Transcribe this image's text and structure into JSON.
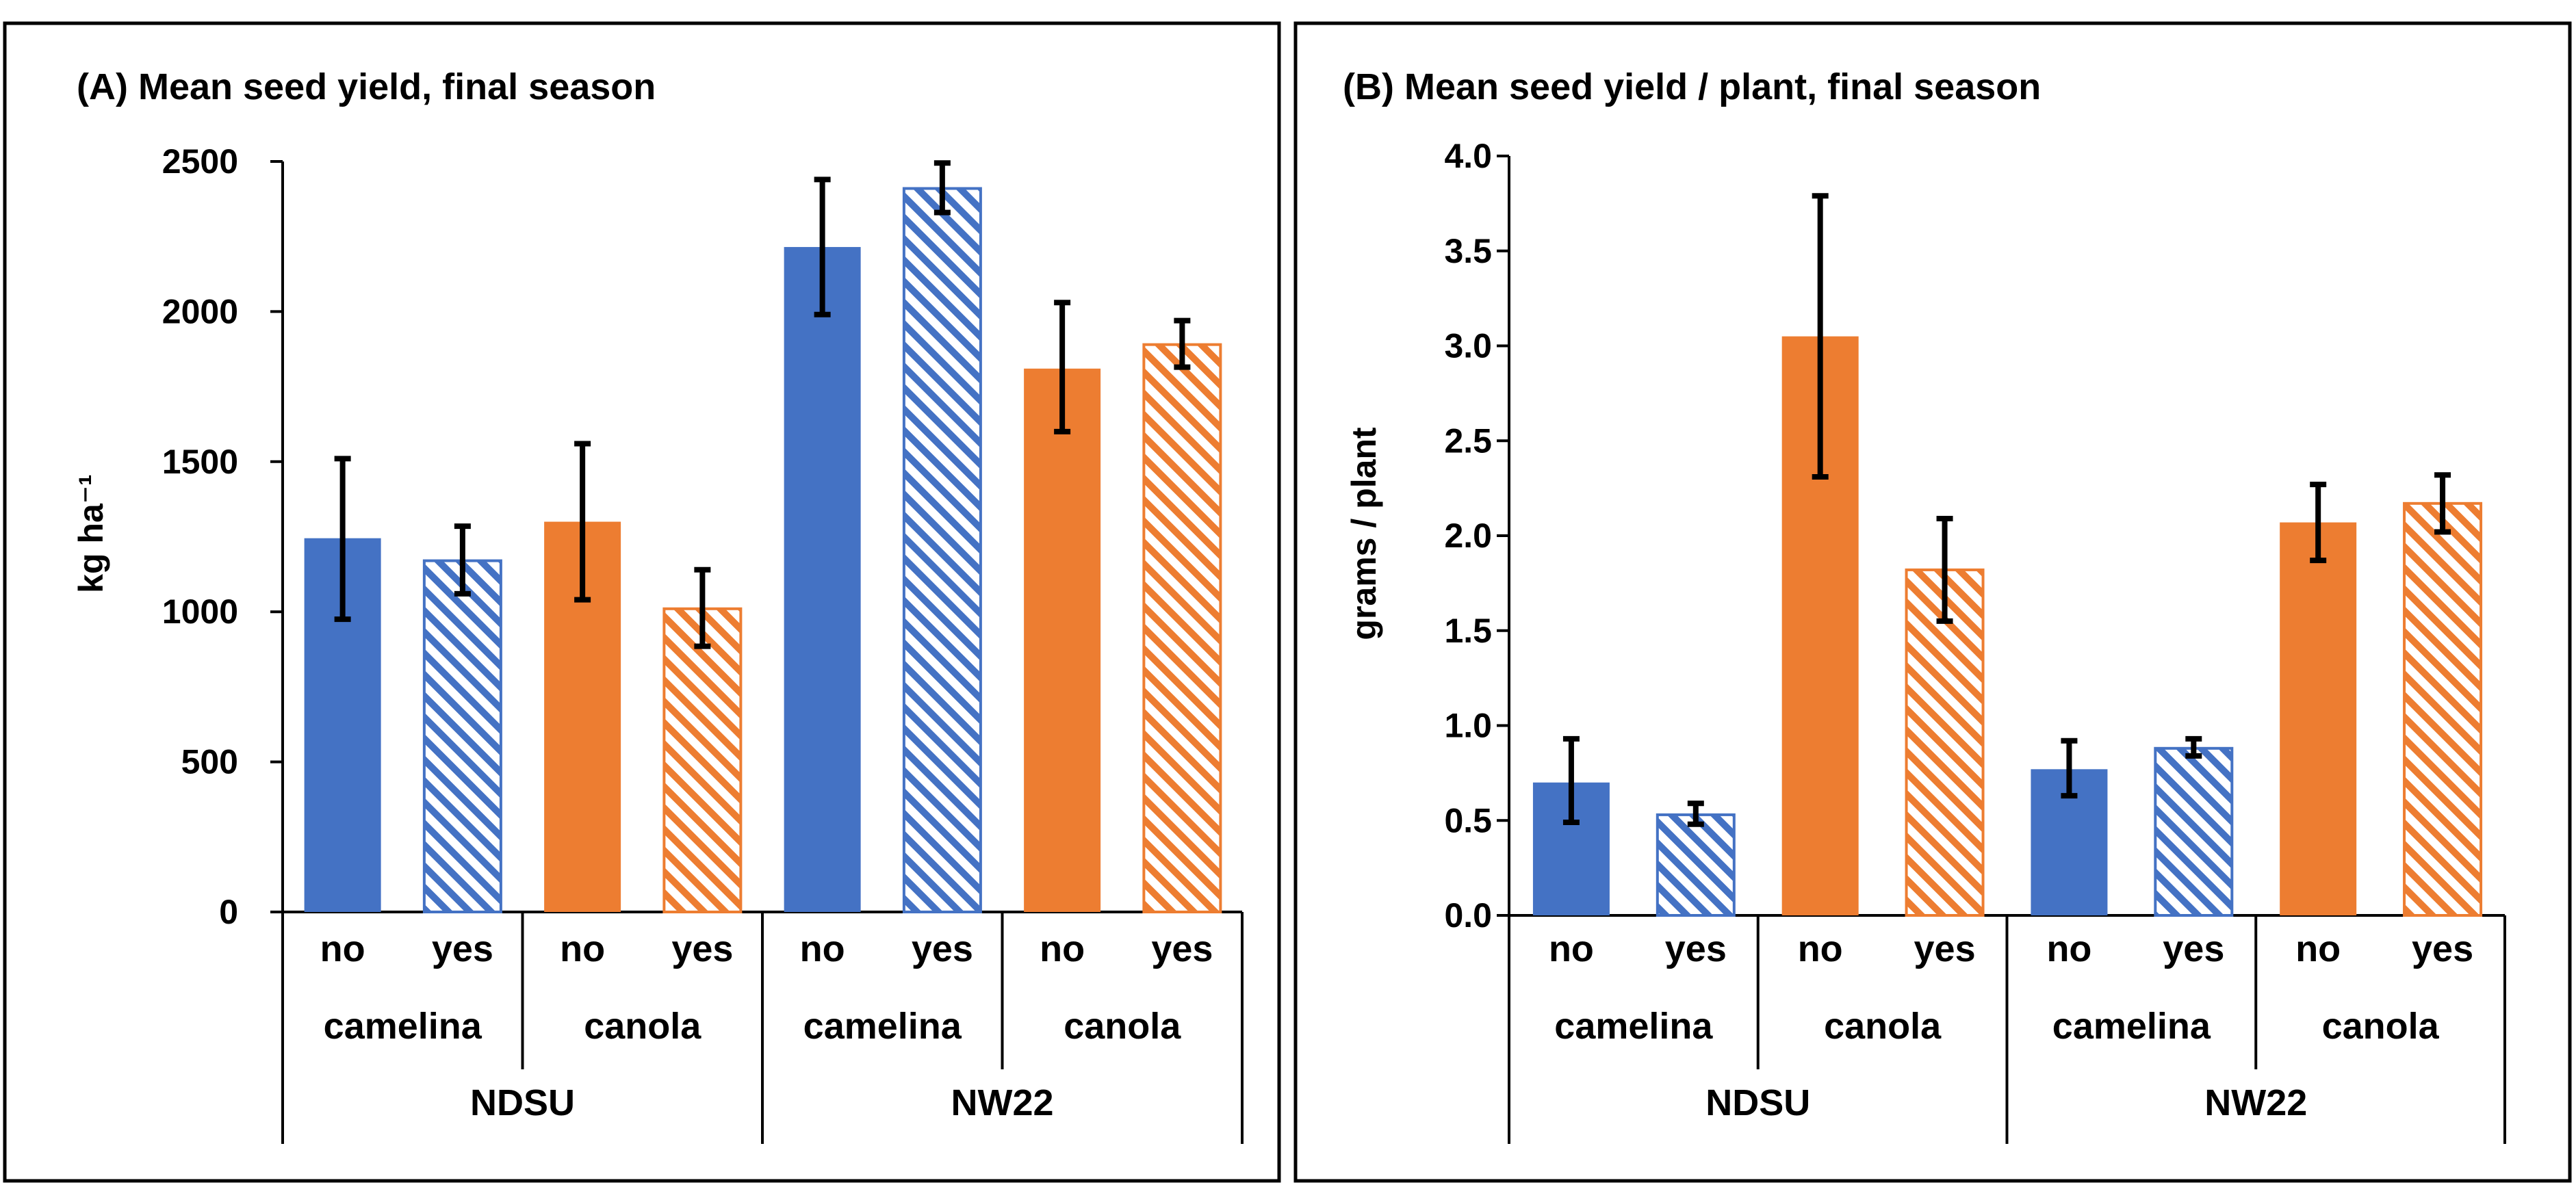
{
  "chart_data": [
    {
      "type": "bar",
      "panel_title": "(A) Mean seed yield, final season",
      "ylabel": "kg ha⁻¹",
      "ylim": [
        0,
        2500
      ],
      "yticks": [
        0,
        500,
        1000,
        1500,
        2000,
        2500
      ],
      "ytick_labels": [
        "0",
        "500",
        "1000",
        "1500",
        "2000",
        "2500"
      ],
      "grid": false,
      "legend": "none",
      "colors": {
        "camelina": "#4472C4",
        "canola": "#ED7D31"
      },
      "x_levels": {
        "level1": [
          "no",
          "yes",
          "no",
          "yes",
          "no",
          "yes",
          "no",
          "yes"
        ],
        "level2": [
          "camelina",
          "canola",
          "camelina",
          "canola"
        ],
        "level3": [
          "NDSU",
          "NW22"
        ]
      },
      "bars": [
        {
          "site": "NDSU",
          "crop": "camelina",
          "treatment": "no",
          "value": 1245,
          "err_low": 975,
          "err_high": 1510,
          "hatched": false
        },
        {
          "site": "NDSU",
          "crop": "camelina",
          "treatment": "yes",
          "value": 1170,
          "err_low": 1060,
          "err_high": 1285,
          "hatched": true
        },
        {
          "site": "NDSU",
          "crop": "canola",
          "treatment": "no",
          "value": 1300,
          "err_low": 1040,
          "err_high": 1560,
          "hatched": false
        },
        {
          "site": "NDSU",
          "crop": "canola",
          "treatment": "yes",
          "value": 1010,
          "err_low": 885,
          "err_high": 1140,
          "hatched": true
        },
        {
          "site": "NW22",
          "crop": "camelina",
          "treatment": "no",
          "value": 2215,
          "err_low": 1990,
          "err_high": 2440,
          "hatched": false
        },
        {
          "site": "NW22",
          "crop": "camelina",
          "treatment": "yes",
          "value": 2410,
          "err_low": 2330,
          "err_high": 2495,
          "hatched": true
        },
        {
          "site": "NW22",
          "crop": "canola",
          "treatment": "no",
          "value": 1810,
          "err_low": 1600,
          "err_high": 2030,
          "hatched": false
        },
        {
          "site": "NW22",
          "crop": "canola",
          "treatment": "yes",
          "value": 1890,
          "err_low": 1815,
          "err_high": 1970,
          "hatched": true
        }
      ]
    },
    {
      "type": "bar",
      "panel_title": "(B) Mean seed yield / plant, final season",
      "ylabel": "grams / plant",
      "ylim": [
        0,
        4.0
      ],
      "yticks": [
        0,
        0.5,
        1.0,
        1.5,
        2.0,
        2.5,
        3.0,
        3.5,
        4.0
      ],
      "ytick_labels": [
        "0.0",
        "0.5",
        "1.0",
        "1.5",
        "2.0",
        "2.5",
        "3.0",
        "3.5",
        "4.0"
      ],
      "grid": false,
      "legend": "none",
      "colors": {
        "camelina": "#4472C4",
        "canola": "#ED7D31"
      },
      "x_levels": {
        "level1": [
          "no",
          "yes",
          "no",
          "yes",
          "no",
          "yes",
          "no",
          "yes"
        ],
        "level2": [
          "camelina",
          "canola",
          "camelina",
          "canola"
        ],
        "level3": [
          "NDSU",
          "NW22"
        ]
      },
      "bars": [
        {
          "site": "NDSU",
          "crop": "camelina",
          "treatment": "no",
          "value": 0.7,
          "err_low": 0.49,
          "err_high": 0.93,
          "hatched": false
        },
        {
          "site": "NDSU",
          "crop": "camelina",
          "treatment": "yes",
          "value": 0.53,
          "err_low": 0.48,
          "err_high": 0.59,
          "hatched": true
        },
        {
          "site": "NDSU",
          "crop": "canola",
          "treatment": "no",
          "value": 3.05,
          "err_low": 2.31,
          "err_high": 3.79,
          "hatched": false
        },
        {
          "site": "NDSU",
          "crop": "canola",
          "treatment": "yes",
          "value": 1.82,
          "err_low": 1.55,
          "err_high": 2.09,
          "hatched": true
        },
        {
          "site": "NW22",
          "crop": "camelina",
          "treatment": "no",
          "value": 0.77,
          "err_low": 0.63,
          "err_high": 0.92,
          "hatched": false
        },
        {
          "site": "NW22",
          "crop": "camelina",
          "treatment": "yes",
          "value": 0.88,
          "err_low": 0.84,
          "err_high": 0.93,
          "hatched": true
        },
        {
          "site": "NW22",
          "crop": "canola",
          "treatment": "no",
          "value": 2.07,
          "err_low": 1.87,
          "err_high": 2.27,
          "hatched": false
        },
        {
          "site": "NW22",
          "crop": "canola",
          "treatment": "yes",
          "value": 2.17,
          "err_low": 2.02,
          "err_high": 2.32,
          "hatched": true
        }
      ]
    }
  ]
}
